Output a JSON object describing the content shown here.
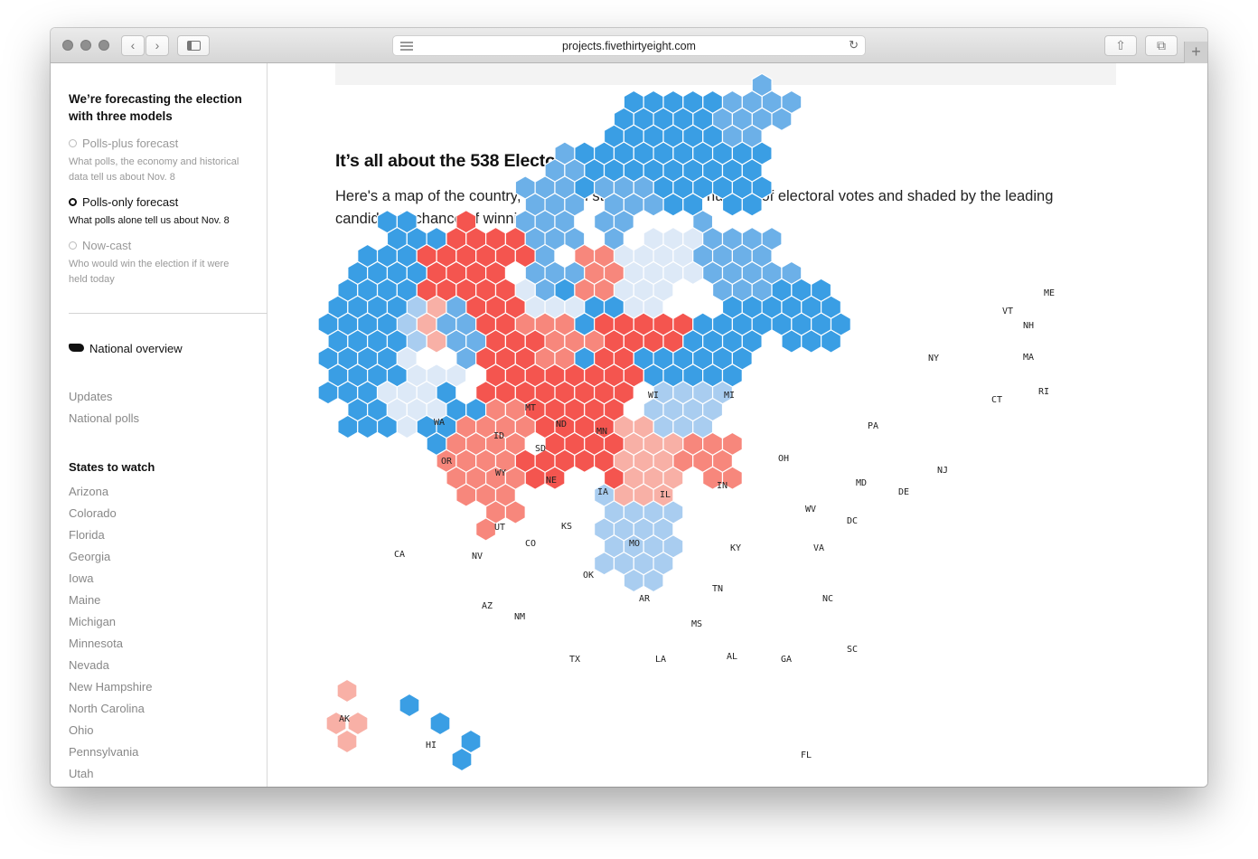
{
  "browser": {
    "url": "projects.fivethirtyeight.com"
  },
  "sidebar": {
    "heading": "We’re forecasting the election with three models",
    "models": [
      {
        "label": "Polls-plus forecast",
        "description": "What polls, the economy and historical data tell us about Nov. 8",
        "selected": false
      },
      {
        "label": "Polls-only forecast",
        "description": "What polls alone tell us about Nov. 8",
        "selected": true
      },
      {
        "label": "Now-cast",
        "description": "Who would win the election if it were held today",
        "selected": false
      }
    ],
    "national_overview": "National overview",
    "links": [
      "Updates",
      "National polls"
    ],
    "states_heading": "States to watch",
    "states": [
      "Arizona",
      "Colorado",
      "Florida",
      "Georgia",
      "Iowa",
      "Maine",
      "Michigan",
      "Minnesota",
      "Nevada",
      "New Hampshire",
      "North Carolina",
      "Ohio",
      "Pennsylvania",
      "Utah"
    ]
  },
  "main": {
    "section_title": "It’s all about the 538 Electoral College votes",
    "section_desc": "Here's a map of the country, with each state sized by its number of electoral votes and shaded by the leading candidate's chance of winning it."
  },
  "map": {
    "colors": {
      "dem_solid": "#3a9ee4",
      "dem_likely": "#6cb0e8",
      "dem_lean": "#a9cdf0",
      "tossup_dem": "#dde9f7",
      "rep_solid": "#f4554f",
      "rep_likely": "#f7877c",
      "rep_lean": "#f8b0a6",
      "tossup_rep": "#fbdcd6"
    },
    "states": [
      {
        "abbr": "WA",
        "shade": "dem_solid"
      },
      {
        "abbr": "OR",
        "shade": "dem_solid"
      },
      {
        "abbr": "CA",
        "shade": "dem_solid"
      },
      {
        "abbr": "NV",
        "shade": "dem_lean"
      },
      {
        "abbr": "ID",
        "shade": "rep_solid"
      },
      {
        "abbr": "MT",
        "shade": "rep_solid"
      },
      {
        "abbr": "WY",
        "shade": "rep_solid"
      },
      {
        "abbr": "UT",
        "shade": "rep_lean"
      },
      {
        "abbr": "AZ",
        "shade": "tossup_dem"
      },
      {
        "abbr": "CO",
        "shade": "dem_likely"
      },
      {
        "abbr": "NM",
        "shade": "dem_solid"
      },
      {
        "abbr": "ND",
        "shade": "rep_solid"
      },
      {
        "abbr": "SD",
        "shade": "rep_solid"
      },
      {
        "abbr": "NE",
        "shade": "rep_solid"
      },
      {
        "abbr": "KS",
        "shade": "rep_solid"
      },
      {
        "abbr": "OK",
        "shade": "rep_solid"
      },
      {
        "abbr": "TX",
        "shade": "rep_likely"
      },
      {
        "abbr": "MN",
        "shade": "dem_likely"
      },
      {
        "abbr": "IA",
        "shade": "tossup_dem"
      },
      {
        "abbr": "MO",
        "shade": "rep_likely"
      },
      {
        "abbr": "AR",
        "shade": "rep_solid"
      },
      {
        "abbr": "LA",
        "shade": "rep_solid"
      },
      {
        "abbr": "WI",
        "shade": "dem_likely"
      },
      {
        "abbr": "IL",
        "shade": "dem_solid"
      },
      {
        "abbr": "MI",
        "shade": "dem_likely"
      },
      {
        "abbr": "IN",
        "shade": "rep_likely"
      },
      {
        "abbr": "OH",
        "shade": "tossup_dem"
      },
      {
        "abbr": "KY",
        "shade": "rep_solid"
      },
      {
        "abbr": "TN",
        "shade": "rep_solid"
      },
      {
        "abbr": "MS",
        "shade": "rep_solid"
      },
      {
        "abbr": "AL",
        "shade": "rep_solid"
      },
      {
        "abbr": "GA",
        "shade": "rep_lean"
      },
      {
        "abbr": "FL",
        "shade": "dem_lean"
      },
      {
        "abbr": "SC",
        "shade": "rep_likely"
      },
      {
        "abbr": "NC",
        "shade": "dem_lean"
      },
      {
        "abbr": "VA",
        "shade": "dem_solid"
      },
      {
        "abbr": "WV",
        "shade": "rep_solid"
      },
      {
        "abbr": "PA",
        "shade": "dem_likely"
      },
      {
        "abbr": "NY",
        "shade": "dem_solid"
      },
      {
        "abbr": "NJ",
        "shade": "dem_solid"
      },
      {
        "abbr": "DE",
        "shade": "dem_solid"
      },
      {
        "abbr": "MD",
        "shade": "dem_solid"
      },
      {
        "abbr": "DC",
        "shade": "dem_solid"
      },
      {
        "abbr": "CT",
        "shade": "dem_solid"
      },
      {
        "abbr": "RI",
        "shade": "dem_solid"
      },
      {
        "abbr": "MA",
        "shade": "dem_solid"
      },
      {
        "abbr": "VT",
        "shade": "dem_solid"
      },
      {
        "abbr": "NH",
        "shade": "dem_likely"
      },
      {
        "abbr": "ME",
        "shade": "dem_likely"
      },
      {
        "abbr": "AK",
        "shade": "rep_lean"
      },
      {
        "abbr": "HI",
        "shade": "dem_solid"
      }
    ]
  }
}
